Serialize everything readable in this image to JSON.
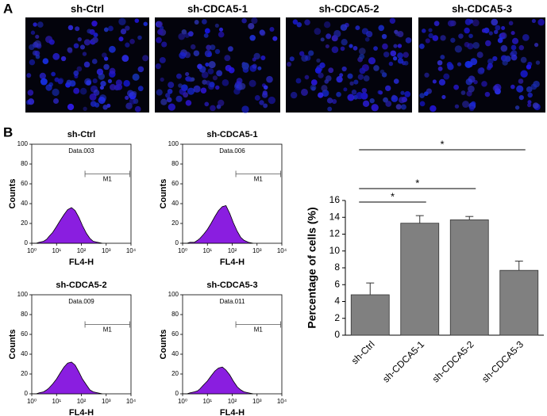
{
  "panel_labels": [
    "A",
    "B"
  ],
  "images": {
    "titles": [
      "sh-Ctrl",
      "sh-CDCA5-1",
      "sh-CDCA5-2",
      "sh-CDCA5-3"
    ]
  },
  "chart_data": [
    {
      "type": "histogram-curve",
      "title": "sh-Ctrl",
      "annotation": "Data.003",
      "xlabel": "FL4-H",
      "ylabel": "Counts",
      "log_x": true,
      "color": "#8a1ee0",
      "x": [
        1,
        1.5,
        2,
        3,
        4,
        5,
        7,
        10,
        14,
        20,
        28,
        40,
        56,
        80,
        110,
        160,
        220,
        300,
        450,
        700
      ],
      "values": [
        0,
        0,
        1,
        2,
        4,
        7,
        11,
        17,
        23,
        29,
        34,
        36,
        33,
        26,
        18,
        10,
        5,
        2,
        1,
        0
      ],
      "gate": {
        "label": "M1",
        "range": [
          140,
          9000
        ],
        "level": 70
      },
      "xlim": [
        1,
        10000
      ],
      "xticks": [
        {
          "value": 1,
          "label": "10⁰"
        },
        {
          "value": 10,
          "label": "10¹"
        },
        {
          "value": 100,
          "label": "10²"
        },
        {
          "value": 1000,
          "label": "10³"
        },
        {
          "value": 10000,
          "label": "10⁴"
        }
      ],
      "ylim": [
        0,
        100
      ],
      "yticks": [
        0,
        20,
        40,
        60,
        80,
        100
      ]
    },
    {
      "type": "histogram-curve",
      "title": "sh-CDCA5-1",
      "annotation": "Data.006",
      "xlabel": "FL4-H",
      "ylabel": "Counts",
      "log_x": true,
      "color": "#8a1ee0",
      "x": [
        1,
        1.5,
        2,
        3,
        4,
        5,
        7,
        10,
        14,
        20,
        28,
        40,
        56,
        80,
        110,
        160,
        220,
        300,
        450,
        700
      ],
      "values": [
        0,
        0,
        1,
        1,
        3,
        5,
        9,
        14,
        20,
        27,
        33,
        37,
        38,
        30,
        21,
        12,
        6,
        3,
        1,
        0
      ],
      "gate": {
        "label": "M1",
        "range": [
          140,
          9000
        ],
        "level": 70
      },
      "xlim": [
        1,
        10000
      ],
      "xticks": [
        {
          "value": 1,
          "label": "10⁰"
        },
        {
          "value": 10,
          "label": "10¹"
        },
        {
          "value": 100,
          "label": "10²"
        },
        {
          "value": 1000,
          "label": "10³"
        },
        {
          "value": 10000,
          "label": "10⁴"
        }
      ],
      "ylim": [
        0,
        100
      ],
      "yticks": [
        0,
        20,
        40,
        60,
        80,
        100
      ]
    },
    {
      "type": "histogram-curve",
      "title": "sh-CDCA5-2",
      "annotation": "Data.009",
      "xlabel": "FL4-H",
      "ylabel": "Counts",
      "log_x": true,
      "color": "#8a1ee0",
      "x": [
        1,
        1.5,
        2,
        3,
        4,
        5,
        7,
        10,
        14,
        20,
        28,
        40,
        56,
        80,
        110,
        160,
        220,
        300,
        450,
        700
      ],
      "values": [
        0,
        0,
        1,
        2,
        4,
        6,
        10,
        15,
        21,
        27,
        31,
        32,
        29,
        22,
        15,
        9,
        4,
        2,
        1,
        0
      ],
      "gate": {
        "label": "M1",
        "range": [
          140,
          9000
        ],
        "level": 70
      },
      "xlim": [
        1,
        10000
      ],
      "xticks": [
        {
          "value": 1,
          "label": "10⁰"
        },
        {
          "value": 10,
          "label": "10¹"
        },
        {
          "value": 100,
          "label": "10²"
        },
        {
          "value": 1000,
          "label": "10³"
        },
        {
          "value": 10000,
          "label": "10⁴"
        }
      ],
      "ylim": [
        0,
        100
      ],
      "yticks": [
        0,
        20,
        40,
        60,
        80,
        100
      ]
    },
    {
      "type": "histogram-curve",
      "title": "sh-CDCA5-3",
      "annotation": "Data.011",
      "xlabel": "FL4-H",
      "ylabel": "Counts",
      "log_x": true,
      "color": "#8a1ee0",
      "x": [
        1,
        1.5,
        2,
        3,
        4,
        5,
        7,
        10,
        14,
        20,
        28,
        40,
        56,
        80,
        110,
        160,
        220,
        300,
        450,
        700
      ],
      "values": [
        0,
        0,
        1,
        2,
        3,
        5,
        9,
        13,
        18,
        23,
        26,
        27,
        24,
        19,
        13,
        7,
        4,
        2,
        1,
        0
      ],
      "gate": {
        "label": "M1",
        "range": [
          140,
          9000
        ],
        "level": 70
      },
      "xlim": [
        1,
        10000
      ],
      "xticks": [
        {
          "value": 1,
          "label": "10⁰"
        },
        {
          "value": 10,
          "label": "10¹"
        },
        {
          "value": 100,
          "label": "10²"
        },
        {
          "value": 1000,
          "label": "10³"
        },
        {
          "value": 10000,
          "label": "10⁴"
        }
      ],
      "ylim": [
        0,
        100
      ],
      "yticks": [
        0,
        20,
        40,
        60,
        80,
        100
      ]
    },
    {
      "type": "bar",
      "ylabel": "Percentage of cells (%)",
      "color": "#808080",
      "categories": [
        "sh-Ctrl",
        "sh-CDCA5-1",
        "sh-CDCA5-2",
        "sh-CDCA5-3"
      ],
      "values": [
        4.8,
        13.3,
        13.7,
        7.7
      ],
      "errors": [
        1.4,
        0.9,
        0.4,
        1.1
      ],
      "ylim": [
        0,
        16
      ],
      "yticks": [
        0,
        2,
        4,
        6,
        8,
        10,
        12,
        14,
        16
      ],
      "significance": [
        {
          "label": "*",
          "between": [
            "sh-Ctrl",
            "sh-CDCA5-3"
          ]
        },
        {
          "label": "*",
          "between": [
            "sh-Ctrl",
            "sh-CDCA5-2"
          ]
        },
        {
          "label": "*",
          "between": [
            "sh-Ctrl",
            "sh-CDCA5-1"
          ]
        }
      ]
    }
  ]
}
